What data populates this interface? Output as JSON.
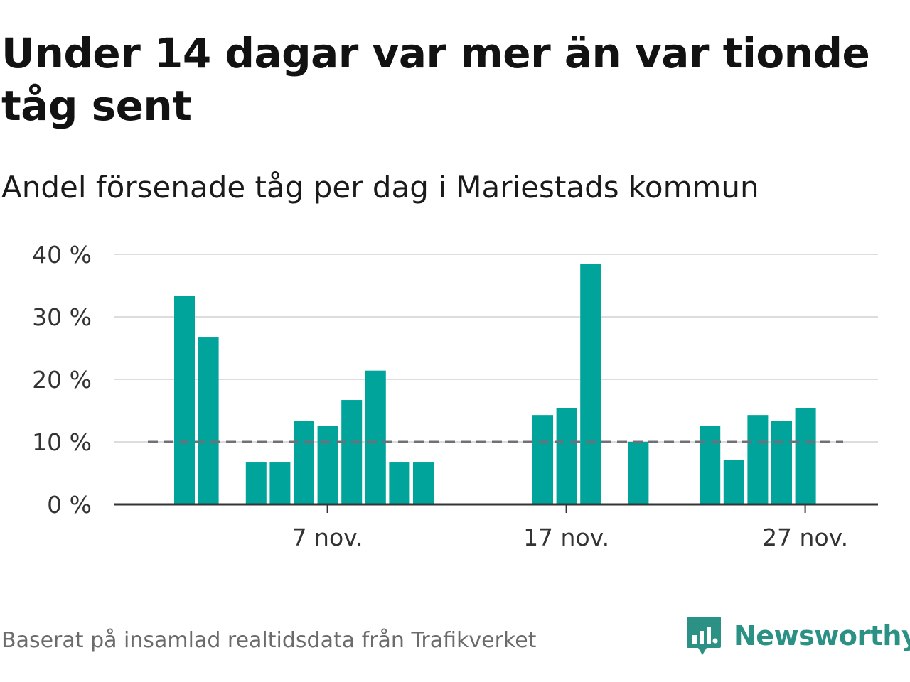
{
  "title": "Under 14 dagar var mer än var tionde tåg sent",
  "subtitle": "Andel försenade tåg per dag i Mariestads kommun",
  "source": "Baserat på insamlad realtidsdata från Trafikverket",
  "brand": {
    "name": "Newsworthy",
    "logo_icon": "newsworthy-logo-icon",
    "color": "#2b9184"
  },
  "chart_data": {
    "type": "bar",
    "x": [
      1,
      2,
      3,
      4,
      5,
      6,
      7,
      8,
      9,
      10,
      11,
      12,
      13,
      14,
      15,
      16,
      17,
      18,
      19,
      20,
      21,
      22,
      23,
      24,
      25,
      26,
      27,
      28,
      29,
      30
    ],
    "values": [
      33.3,
      26.7,
      0,
      6.7,
      6.7,
      13.3,
      12.5,
      16.7,
      21.4,
      6.7,
      6.7,
      0,
      0,
      0,
      0,
      14.3,
      15.4,
      38.5,
      0,
      10.0,
      0,
      0,
      12.5,
      7.1,
      14.3,
      13.3,
      15.4,
      0,
      0,
      0
    ],
    "x_tick_values": [
      7,
      17,
      27
    ],
    "x_tick_labels": [
      "7 nov.",
      "17 nov.",
      "27 nov."
    ],
    "y_ticks": [
      0,
      10,
      20,
      30,
      40
    ],
    "y_tick_labels": [
      "0 %",
      "10 %",
      "20 %",
      "30 %",
      "40 %"
    ],
    "ylim": [
      0,
      40
    ],
    "reference_line": {
      "value": 10,
      "style": "dashed"
    },
    "grid": true,
    "bar_color": "#00a49a",
    "reference_color": "#6f6f7a",
    "grid_color": "#dddddd",
    "axis_color": "#333333"
  }
}
